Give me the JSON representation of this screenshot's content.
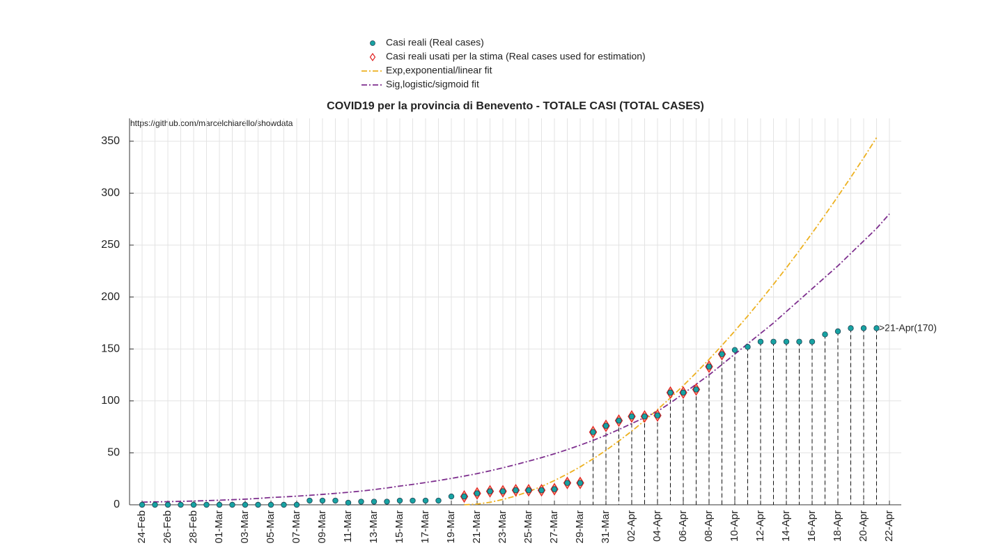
{
  "chart_data": {
    "type": "line",
    "title": "COVID19 per la provincia di Benevento - TOTALE CASI (TOTAL CASES)",
    "source": "https://github.com/marcelchiarello/showdata",
    "annotation": ">21-Apr(170)",
    "categories": [
      "24-Feb",
      null,
      "26-Feb",
      null,
      "28-Feb",
      null,
      "01-Mar",
      null,
      "03-Mar",
      null,
      "05-Mar",
      null,
      "07-Mar",
      null,
      "09-Mar",
      null,
      "11-Mar",
      null,
      "13-Mar",
      null,
      "15-Mar",
      null,
      "17-Mar",
      null,
      "19-Mar",
      null,
      "21-Mar",
      null,
      "23-Mar",
      null,
      "25-Mar",
      null,
      "27-Mar",
      null,
      "29-Mar",
      null,
      "31-Mar",
      null,
      "02-Apr",
      null,
      "04-Apr",
      null,
      "06-Apr",
      null,
      "08-Apr",
      null,
      "10-Apr",
      null,
      "12-Apr",
      null,
      "14-Apr",
      null,
      "16-Apr",
      null,
      "18-Apr",
      null,
      "20-Apr",
      null,
      "22-Apr"
    ],
    "series": [
      {
        "name": "Casi reali (Real cases)",
        "color": "#17a2a2",
        "values": [
          0,
          0,
          0,
          0,
          0,
          0,
          0,
          0,
          0,
          0,
          0,
          0,
          0,
          4,
          4,
          4,
          2,
          3,
          3,
          3,
          4,
          4,
          4,
          4,
          8,
          8,
          11,
          13,
          13,
          14,
          14,
          14,
          15,
          21,
          21,
          70,
          76,
          81,
          85,
          85,
          86,
          108,
          108,
          111,
          133,
          145,
          149,
          152,
          157,
          157,
          157,
          157,
          157,
          164,
          167,
          170,
          170,
          170,
          null
        ]
      },
      {
        "name": "Casi reali usati per la stima (Real cases used for estimation)",
        "color": "#e02020",
        "values": [
          null,
          null,
          null,
          null,
          null,
          null,
          null,
          null,
          null,
          null,
          null,
          null,
          null,
          null,
          null,
          null,
          null,
          null,
          null,
          null,
          null,
          null,
          null,
          null,
          null,
          8,
          11,
          13,
          13,
          14,
          14,
          14,
          15,
          21,
          21,
          70,
          76,
          81,
          85,
          85,
          86,
          108,
          108,
          111,
          133,
          145,
          null,
          null,
          null,
          null,
          null,
          null,
          null,
          null,
          null,
          null,
          null,
          null,
          null
        ]
      },
      {
        "name": "Exp,exponential/linear fit",
        "color": "#edb120",
        "values": [
          null,
          null,
          null,
          null,
          null,
          null,
          null,
          null,
          null,
          null,
          null,
          null,
          null,
          null,
          null,
          null,
          null,
          null,
          null,
          null,
          null,
          null,
          null,
          null,
          null,
          0,
          0.7,
          2.4,
          5.1,
          8.5,
          12.7,
          17.6,
          23.3,
          29.6,
          36.5,
          44.2,
          52.4,
          61.4,
          70.9,
          81,
          91.6,
          102.9,
          114.7,
          127.1,
          139.9,
          153.4,
          167.3,
          181.7,
          196.7,
          212.2,
          228.1,
          244.6,
          261.5,
          279,
          296.9,
          315.2,
          334,
          353.4,
          null
        ]
      },
      {
        "name": "Sig,logistic/sigmoid fit",
        "color": "#7e2f8e",
        "values": [
          2.5,
          2.8,
          3,
          3.3,
          3.6,
          4,
          4.4,
          4.9,
          5.4,
          6.1,
          7,
          7.6,
          8.3,
          9.1,
          10,
          11,
          12,
          13.2,
          14.6,
          16.2,
          18,
          19.6,
          21.4,
          23.3,
          25.4,
          27.6,
          30,
          32.7,
          35.6,
          38.7,
          42,
          45.4,
          49.1,
          53.1,
          57.4,
          62,
          67,
          72.4,
          78.2,
          84,
          90,
          98,
          107,
          116,
          125,
          135,
          145,
          155,
          165,
          175,
          186,
          197,
          208,
          219,
          230,
          242,
          254,
          266,
          280
        ]
      }
    ],
    "ylim": [
      0,
      372
    ],
    "yticks": [
      0,
      50,
      100,
      150,
      200,
      250,
      300,
      350
    ],
    "grid": true
  }
}
